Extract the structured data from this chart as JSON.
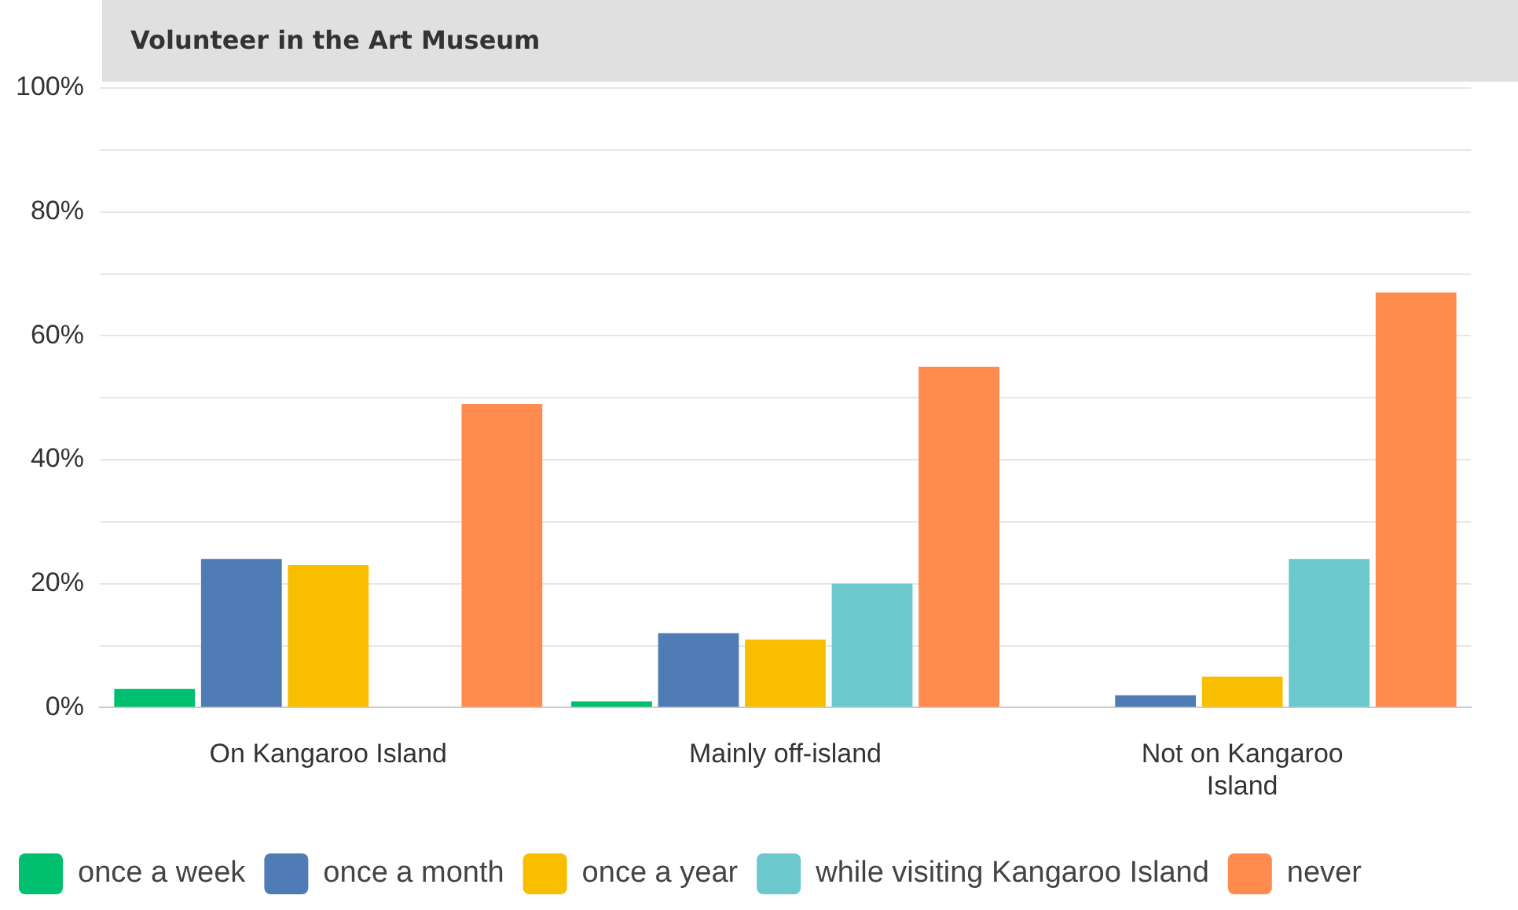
{
  "chart_data": {
    "type": "bar",
    "title": "Volunteer in the Art Museum",
    "categories": [
      "On Kangaroo Island",
      "Mainly off-island",
      "Not on Kangaroo Island"
    ],
    "series": [
      {
        "name": "once a week",
        "color": "#00bf6f",
        "values": [
          3,
          1,
          0
        ]
      },
      {
        "name": "once a month",
        "color": "#507cb6",
        "values": [
          24,
          12,
          2
        ]
      },
      {
        "name": "once a year",
        "color": "#f9be00",
        "values": [
          23,
          11,
          5
        ]
      },
      {
        "name": "while visiting Kangaroo Island",
        "color": "#6bc8cd",
        "values": [
          0,
          20,
          24
        ]
      },
      {
        "name": "never",
        "color": "#ff8b4f",
        "values": [
          49,
          55,
          67
        ]
      }
    ],
    "ylim": [
      0,
      100
    ],
    "yticks": [
      {
        "value": 0,
        "label": "0%"
      },
      {
        "value": 10,
        "label": null
      },
      {
        "value": 20,
        "label": "20%"
      },
      {
        "value": 30,
        "label": null
      },
      {
        "value": 40,
        "label": "40%"
      },
      {
        "value": 50,
        "label": null
      },
      {
        "value": 60,
        "label": "60%"
      },
      {
        "value": 70,
        "label": null
      },
      {
        "value": 80,
        "label": "80%"
      },
      {
        "value": 90,
        "label": null
      },
      {
        "value": 100,
        "label": "100%"
      }
    ],
    "grid": "y",
    "legend": "bottom"
  }
}
